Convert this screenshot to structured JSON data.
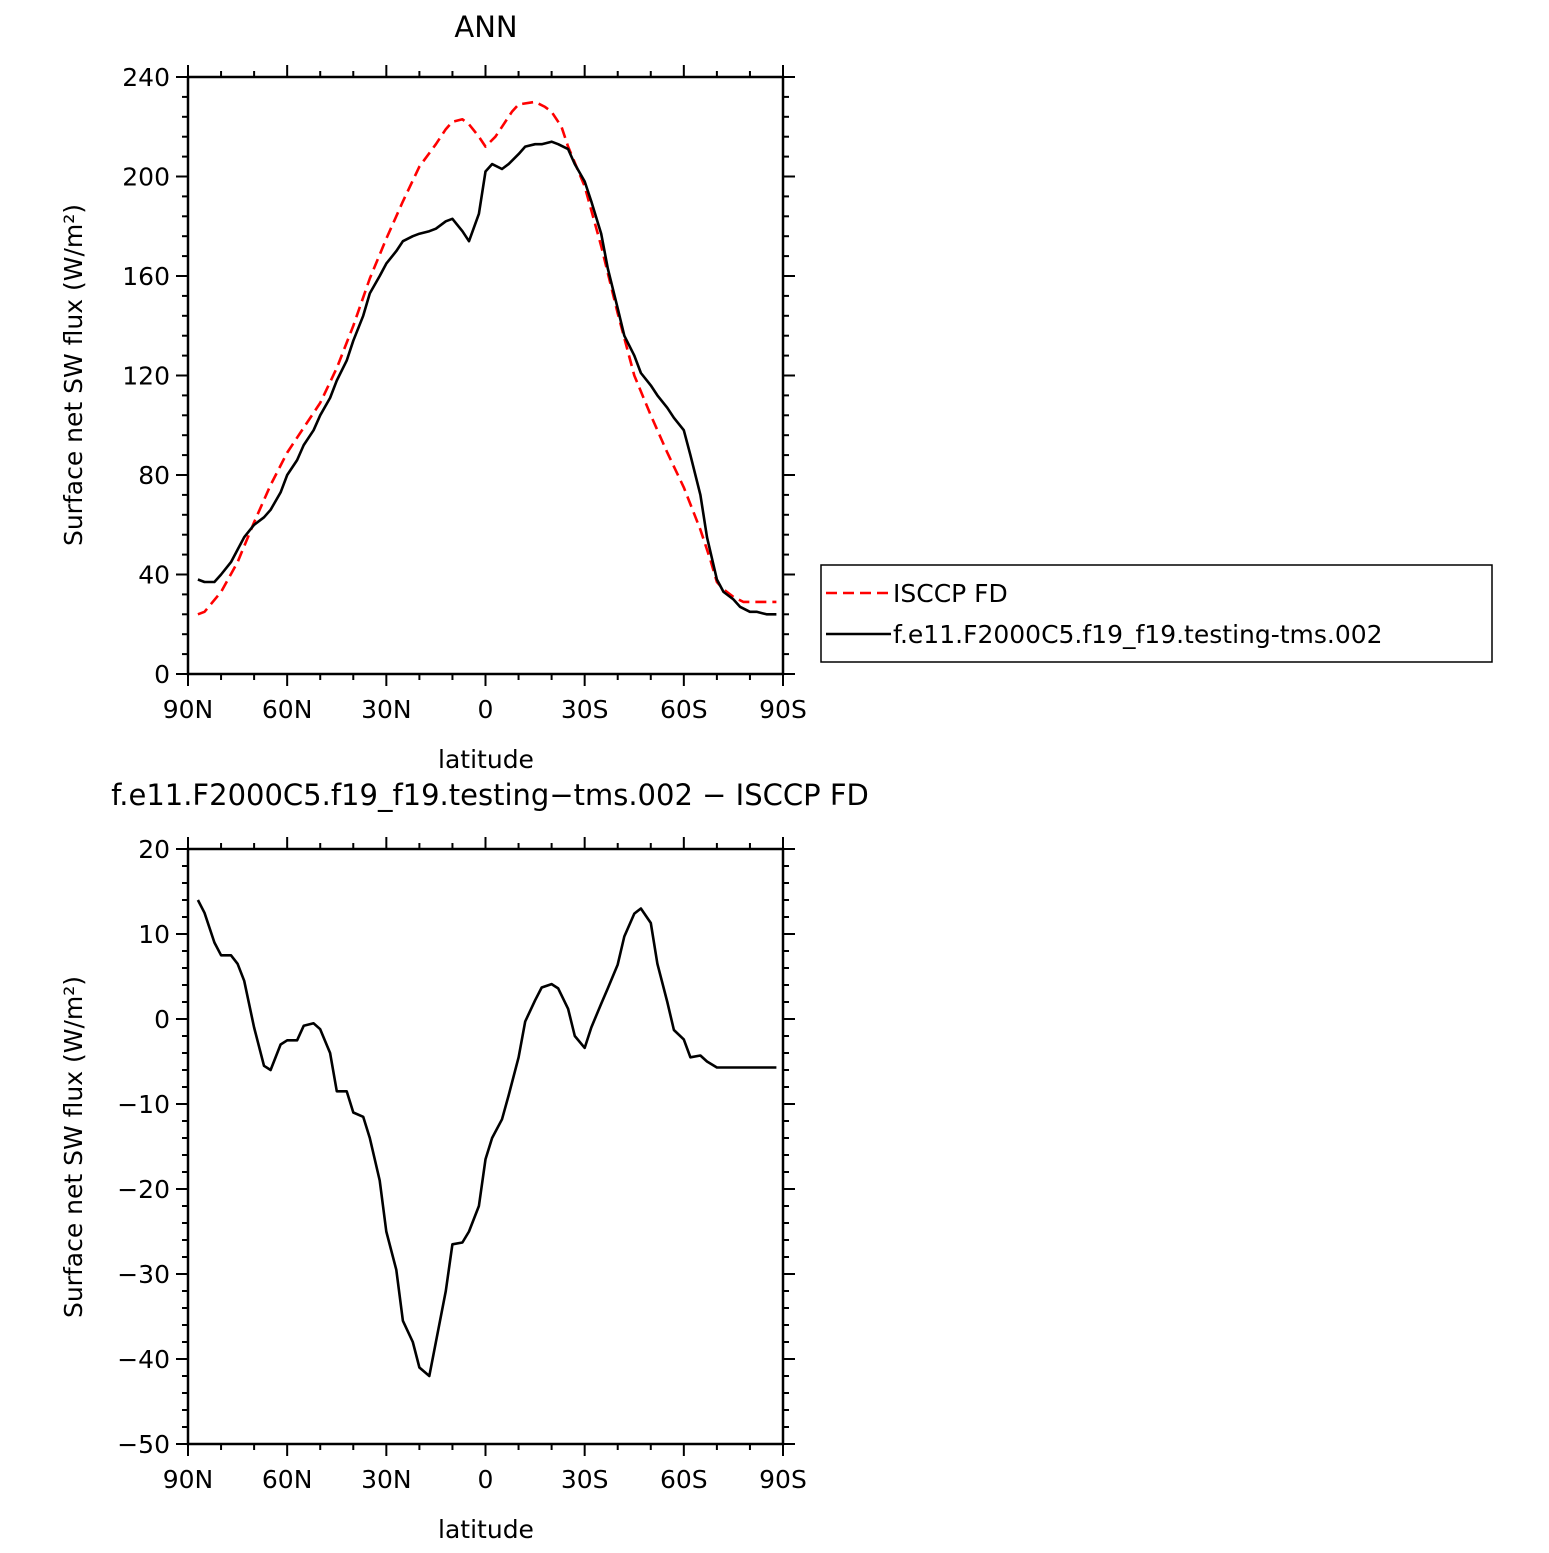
{
  "chart_data": [
    {
      "type": "line",
      "title": "ANN",
      "xlabel": "latitude",
      "ylabel": "Surface net SW flux (W/m²)",
      "ylim": [
        0,
        240
      ],
      "yticks": [
        0,
        40,
        80,
        120,
        160,
        200,
        240
      ],
      "xlim": [
        90,
        -90
      ],
      "xticks": [
        90,
        60,
        30,
        0,
        -30,
        -60,
        -90
      ],
      "xticklabels": [
        "90N",
        "60N",
        "30N",
        "0",
        "30S",
        "60S",
        "90S"
      ],
      "legend_placement": "right",
      "series": [
        {
          "name": "ISCCP FD",
          "color": "#ff0000",
          "dash": "dashed",
          "x": [
            87,
            85,
            80,
            75,
            70,
            65,
            60,
            55,
            50,
            45,
            40,
            35,
            30,
            25,
            20,
            15,
            12,
            10,
            7,
            5,
            2,
            0,
            -3,
            -5,
            -8,
            -10,
            -15,
            -18,
            -20,
            -23,
            -25,
            -30,
            -35,
            -40,
            -45,
            -50,
            -55,
            -60,
            -65,
            -68,
            -70,
            -72,
            -75,
            -78,
            -80,
            -82,
            -85,
            -88
          ],
          "y": [
            24,
            25,
            33,
            45,
            61,
            76,
            89,
            99,
            109,
            123,
            140,
            159,
            175,
            190,
            204,
            213,
            219,
            222,
            223,
            221,
            216,
            212,
            216,
            220,
            226,
            229,
            230,
            228,
            226,
            220,
            212,
            196,
            172,
            145,
            120,
            104,
            89,
            75,
            58,
            46,
            37,
            34,
            31,
            29,
            29,
            29,
            29,
            29
          ]
        },
        {
          "name": "f.e11.F2000C5.f19_f19.testing-tms.002",
          "color": "#000000",
          "dash": "solid",
          "x": [
            87,
            85,
            82,
            80,
            77,
            75,
            73,
            70,
            67,
            65,
            62,
            60,
            57,
            55,
            52,
            50,
            47,
            45,
            42,
            40,
            37,
            35,
            32,
            30,
            27,
            25,
            22,
            20,
            17,
            15,
            12,
            10,
            7,
            5,
            2,
            0,
            -2,
            -5,
            -7,
            -10,
            -12,
            -15,
            -17,
            -20,
            -22,
            -25,
            -27,
            -30,
            -32,
            -35,
            -37,
            -40,
            -42,
            -45,
            -47,
            -50,
            -52,
            -55,
            -57,
            -60,
            -62,
            -65,
            -67,
            -70,
            -72,
            -75,
            -77,
            -80,
            -82,
            -85,
            -88
          ],
          "y": [
            38,
            37,
            37,
            40,
            45,
            50,
            55,
            60,
            63,
            66,
            73,
            80,
            86,
            92,
            98,
            104,
            111,
            118,
            126,
            134,
            144,
            153,
            160,
            165,
            170,
            174,
            176,
            177,
            178,
            179,
            182,
            183,
            178,
            174,
            185,
            202,
            205,
            203,
            205,
            209,
            212,
            213,
            213,
            214,
            213,
            211,
            205,
            198,
            190,
            177,
            163,
            147,
            136,
            128,
            121,
            116,
            112,
            107,
            103,
            98,
            88,
            72,
            55,
            38,
            33,
            30,
            27,
            25,
            25,
            24,
            24
          ]
        }
      ]
    },
    {
      "type": "line",
      "title": "f.e11.F2000C5.f19_f19.testing−tms.002 − ISCCP FD",
      "xlabel": "latitude",
      "ylabel": "Surface net SW flux (W/m²)",
      "ylim": [
        -50,
        20
      ],
      "yticks": [
        -50,
        -40,
        -30,
        -20,
        -10,
        0,
        10,
        20
      ],
      "xlim": [
        90,
        -90
      ],
      "xticks": [
        90,
        60,
        30,
        0,
        -30,
        -60,
        -90
      ],
      "xticklabels": [
        "90N",
        "60N",
        "30N",
        "0",
        "30S",
        "60S",
        "90S"
      ],
      "series": [
        {
          "color": "#000000",
          "dash": "solid",
          "x": [
            87,
            85,
            82,
            80,
            77,
            75,
            73,
            70,
            67,
            65,
            62,
            60,
            57,
            55,
            52,
            50,
            47,
            45,
            42,
            40,
            37,
            35,
            32,
            30,
            27,
            25,
            22,
            20,
            17,
            15,
            12,
            10,
            7,
            5,
            2,
            0,
            -2,
            -5,
            -7,
            -10,
            -12,
            -15,
            -17,
            -20,
            -22,
            -25,
            -27,
            -30,
            -32,
            -35,
            -37,
            -40,
            -42,
            -45,
            -47,
            -50,
            -52,
            -55,
            -57,
            -60,
            -62,
            -65,
            -67,
            -70,
            -72,
            -75,
            -77,
            -80,
            -82,
            -85,
            -88
          ],
          "y": [
            14,
            12.5,
            9,
            7.5,
            7.5,
            6.5,
            4.5,
            -1,
            -5.5,
            -6,
            -3,
            -2.5,
            -2.5,
            -0.8,
            -0.5,
            -1.2,
            -4,
            -8.5,
            -8.5,
            -11,
            -11.5,
            -14,
            -19,
            -25,
            -29.5,
            -35.5,
            -38,
            -41,
            -42,
            -38,
            -32,
            -26.5,
            -26.3,
            -25,
            -22,
            -16.5,
            -14,
            -11.8,
            -9,
            -4.5,
            -0.3,
            2.2,
            3.7,
            4.1,
            3.6,
            1.2,
            -2,
            -3.4,
            -1,
            1.8,
            3.6,
            6.4,
            9.7,
            12.4,
            13,
            11.3,
            6.5,
            2,
            -1.3,
            -2.4,
            -4.5,
            -4.3,
            -5,
            -5.7,
            -5.7,
            -5.7,
            -5.7,
            -5.7,
            -5.7,
            -5.7,
            -5.7
          ]
        }
      ]
    }
  ]
}
